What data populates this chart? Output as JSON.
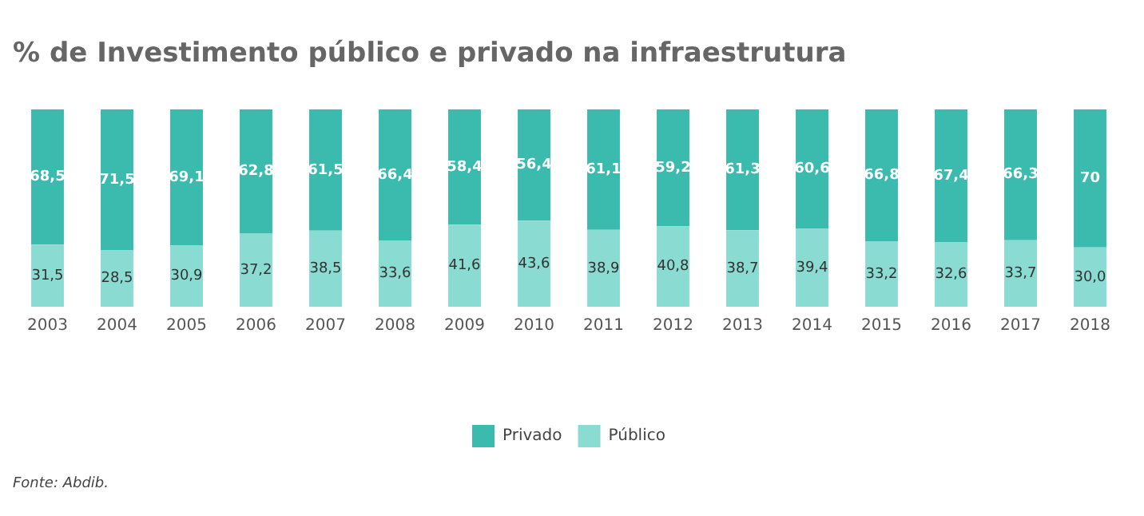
{
  "chart_data": {
    "type": "bar",
    "title": "% de Investimento público e privado na infraestrutura",
    "categories": [
      "2003",
      "2004",
      "2005",
      "2006",
      "2007",
      "2008",
      "2009",
      "2010",
      "2011",
      "2012",
      "2013",
      "2014",
      "2015",
      "2016",
      "2017",
      "2018"
    ],
    "stacked": true,
    "tick_labels": "x",
    "grid": false,
    "legend": "bottom",
    "series": [
      {
        "name": "Público",
        "color": "#8adcd3",
        "values": [
          31.5,
          28.5,
          30.9,
          37.2,
          38.5,
          33.6,
          41.6,
          43.6,
          38.9,
          40.8,
          38.7,
          39.4,
          33.2,
          32.6,
          33.7,
          30.0
        ],
        "value_labels": [
          "31,5",
          "28,5",
          "30,9",
          "37,2",
          "38,5",
          "33,6",
          "41,6",
          "43,6",
          "38,9",
          "40,8",
          "38,7",
          "39,4",
          "33,2",
          "32,6",
          "33,7",
          "30,0"
        ]
      },
      {
        "name": "Privado",
        "color": "#3bbaae",
        "values": [
          68.5,
          71.5,
          69.1,
          62.8,
          61.5,
          66.4,
          58.4,
          56.4,
          61.1,
          59.2,
          61.3,
          60.6,
          66.8,
          67.4,
          66.3,
          70
        ],
        "value_labels": [
          "68,5",
          "71,5",
          "69,1",
          "62,8",
          "61,5",
          "66,4",
          "58,4",
          "56,4",
          "61,1",
          "59,2",
          "61,3",
          "60,6",
          "66,8",
          "67,4",
          "66,3",
          "70"
        ]
      }
    ],
    "annotations": [
      "Fonte: Abdib."
    ]
  }
}
